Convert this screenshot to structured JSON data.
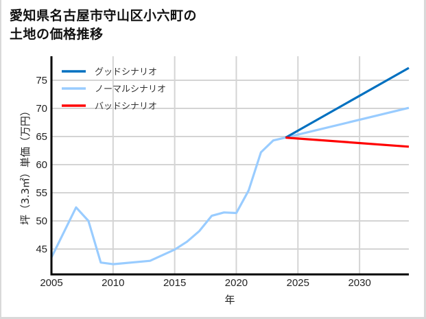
{
  "title": "愛知県名古屋市守山区小六町の\n土地の価格推移",
  "chart_data": {
    "type": "line",
    "title": "愛知県名古屋市守山区小六町の土地の価格推移",
    "xlabel": "年",
    "ylabel": "坪（3.3㎡）単価（万円）",
    "xlim": [
      2005,
      2034
    ],
    "ylim": [
      41,
      79
    ],
    "xticks": [
      2005,
      2010,
      2015,
      2020,
      2025,
      2030
    ],
    "yticks": [
      45,
      50,
      55,
      60,
      65,
      70,
      75
    ],
    "grid": true,
    "legend_position": "upper left",
    "series": [
      {
        "name": "グッドシナリオ",
        "color": "#0070C0",
        "x": [
          2024,
          2034
        ],
        "y": [
          64.8,
          77.2
        ]
      },
      {
        "name": "ノーマルシナリオ",
        "color": "#99CCFF",
        "x": [
          2005,
          2007,
          2008,
          2009,
          2010,
          2013,
          2015,
          2016,
          2017,
          2018,
          2019,
          2020,
          2021,
          2022,
          2023,
          2024,
          2034
        ],
        "y": [
          43.5,
          52.4,
          50.0,
          42.6,
          42.3,
          42.9,
          44.9,
          46.3,
          48.2,
          50.9,
          51.5,
          51.4,
          55.4,
          62.2,
          64.3,
          64.8,
          70.1
        ]
      },
      {
        "name": "バッドシナリオ",
        "color": "#FF0000",
        "x": [
          2024,
          2034
        ],
        "y": [
          64.8,
          63.2
        ]
      }
    ]
  }
}
